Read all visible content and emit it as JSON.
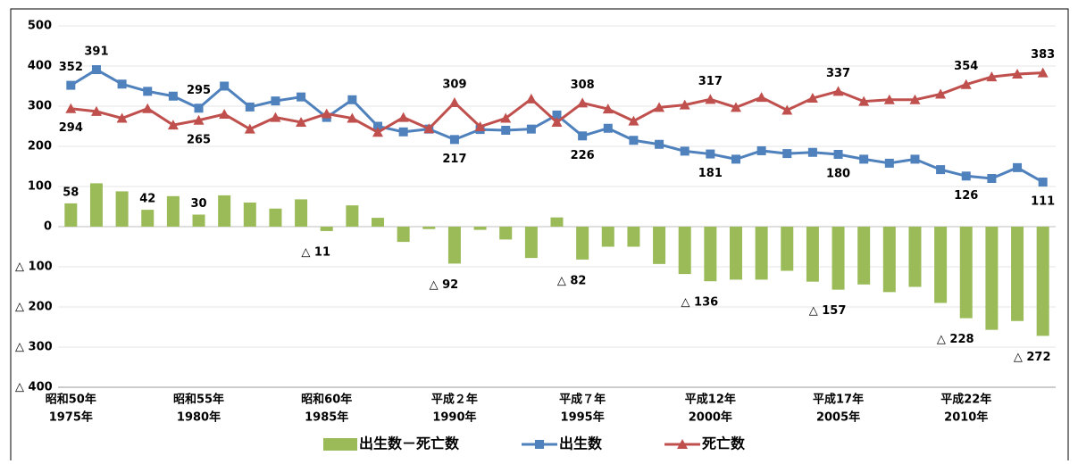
{
  "chart_data": {
    "type": "combo",
    "categories": [
      "昭和50年",
      null,
      null,
      null,
      null,
      "昭和55年",
      null,
      null,
      null,
      null,
      "昭和60年",
      null,
      null,
      null,
      null,
      "平成２年",
      null,
      null,
      null,
      null,
      "平成７年",
      null,
      null,
      null,
      null,
      "平成12年",
      null,
      null,
      null,
      null,
      "平成17年",
      null,
      null,
      null,
      null,
      "平成22年",
      null,
      null,
      null
    ],
    "x_year_labels": [
      "1975年",
      null,
      null,
      null,
      null,
      "1980年",
      null,
      null,
      null,
      null,
      "1985年",
      null,
      null,
      null,
      null,
      "1990年",
      null,
      null,
      null,
      null,
      "1995年",
      null,
      null,
      null,
      null,
      "2000年",
      null,
      null,
      null,
      null,
      "2005年",
      null,
      null,
      null,
      null,
      "2010年",
      null,
      null,
      null
    ],
    "ylim": [
      -400,
      500
    ],
    "yticks": [
      500,
      400,
      300,
      200,
      100,
      0,
      {
        "value": -100,
        "label": "△ 100"
      },
      {
        "value": -200,
        "label": "△ 200"
      },
      {
        "value": -300,
        "label": "△ 300"
      },
      {
        "value": -400,
        "label": "△ 400"
      }
    ],
    "grid": true,
    "legend": "bottom",
    "series": [
      {
        "name": "出生数－死亡数",
        "type": "bar",
        "color": "#9bbb59",
        "values": [
          58,
          108,
          88,
          42,
          76,
          30,
          78,
          60,
          45,
          68,
          -11,
          53,
          22,
          -38,
          -6,
          -92,
          -8,
          -32,
          -78,
          23,
          -82,
          -50,
          -50,
          -93,
          -118,
          -136,
          -132,
          -132,
          -110,
          -137,
          -157,
          -144,
          -163,
          -150,
          -190,
          -228,
          -257,
          -235,
          -272
        ],
        "value_labels": [
          "58",
          null,
          null,
          "42",
          null,
          "30",
          null,
          null,
          null,
          null,
          "△ 11",
          null,
          null,
          null,
          null,
          "△ 92",
          null,
          null,
          null,
          null,
          "△ 82",
          null,
          null,
          null,
          null,
          "△ 136",
          null,
          null,
          null,
          null,
          "△ 157",
          null,
          null,
          null,
          null,
          "△ 228",
          null,
          null,
          "△ 272"
        ]
      },
      {
        "name": "出生数",
        "type": "line",
        "marker": "square",
        "color": "#4f81bd",
        "values": [
          352,
          391,
          355,
          337,
          325,
          295,
          350,
          298,
          313,
          323,
          272,
          316,
          250,
          236,
          243,
          217,
          242,
          240,
          243,
          278,
          226,
          245,
          215,
          205,
          188,
          181,
          168,
          189,
          182,
          185,
          180,
          168,
          158,
          168,
          142,
          126,
          120,
          147,
          111
        ],
        "value_labels": [
          "352",
          "391",
          null,
          null,
          null,
          "295",
          null,
          null,
          null,
          null,
          null,
          null,
          null,
          null,
          null,
          "217",
          null,
          null,
          null,
          null,
          "226",
          null,
          null,
          null,
          null,
          "181",
          null,
          null,
          null,
          null,
          "180",
          null,
          null,
          null,
          null,
          "126",
          null,
          null,
          "111"
        ]
      },
      {
        "name": "死亡数",
        "type": "line",
        "marker": "triangle",
        "color": "#c0504d",
        "values": [
          294,
          287,
          270,
          294,
          253,
          265,
          280,
          243,
          272,
          260,
          281,
          270,
          235,
          272,
          244,
          309,
          249,
          270,
          318,
          260,
          308,
          293,
          263,
          297,
          303,
          317,
          297,
          322,
          290,
          320,
          337,
          312,
          316,
          316,
          330,
          354,
          373,
          380,
          383
        ],
        "value_labels": [
          "294",
          null,
          null,
          null,
          null,
          "265",
          null,
          null,
          null,
          null,
          null,
          null,
          null,
          null,
          null,
          "309",
          null,
          null,
          null,
          null,
          "308",
          null,
          null,
          null,
          null,
          "317",
          null,
          null,
          null,
          null,
          "337",
          null,
          null,
          null,
          null,
          "354",
          null,
          null,
          "383"
        ]
      }
    ]
  }
}
